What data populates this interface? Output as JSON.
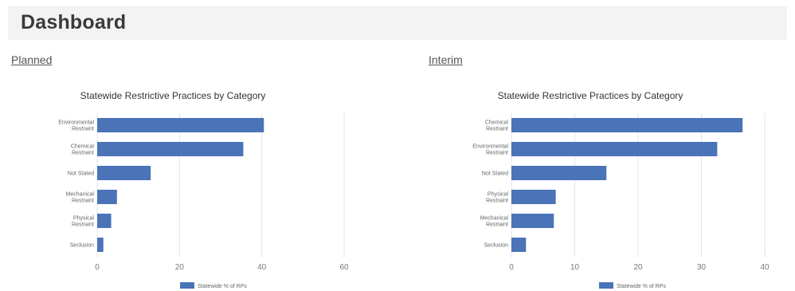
{
  "header": {
    "title": "Dashboard"
  },
  "sections": [
    {
      "label": "Planned"
    },
    {
      "label": "Interim"
    }
  ],
  "colors": {
    "bar": "#4a73b8",
    "grid": "#e3e3e3",
    "header_bg": "#f3f3f3"
  },
  "chart_data": [
    {
      "type": "bar",
      "orientation": "horizontal",
      "title": "Statewide Restrictive Practices by Category",
      "categories": [
        "Environmental Restraint",
        "Chemical Restraint",
        "Not Stated",
        "Mechanical Restraint",
        "Physical Restraint",
        "Seclusion"
      ],
      "series": [
        {
          "name": "Statewide % of RPs",
          "values": [
            40.5,
            35.5,
            13,
            4.8,
            3.4,
            1.5
          ]
        }
      ],
      "xlim": [
        0,
        60
      ],
      "xticks": [
        0,
        20,
        40,
        60
      ],
      "grid": true,
      "legend": "bottom"
    },
    {
      "type": "bar",
      "orientation": "horizontal",
      "title": "Statewide Restrictive Practices by Category",
      "categories": [
        "Chemical Restraint",
        "Environmental Restraint",
        "Not Stated",
        "Physical Restraint",
        "Mechanical Restraint",
        "Seclusion"
      ],
      "series": [
        {
          "name": "Statewide % of RPs",
          "values": [
            36.5,
            32.5,
            15,
            7,
            6.7,
            2.3
          ]
        }
      ],
      "xlim": [
        0,
        40
      ],
      "xticks": [
        0,
        10,
        20,
        30,
        40
      ],
      "grid": true,
      "legend": "bottom"
    }
  ]
}
